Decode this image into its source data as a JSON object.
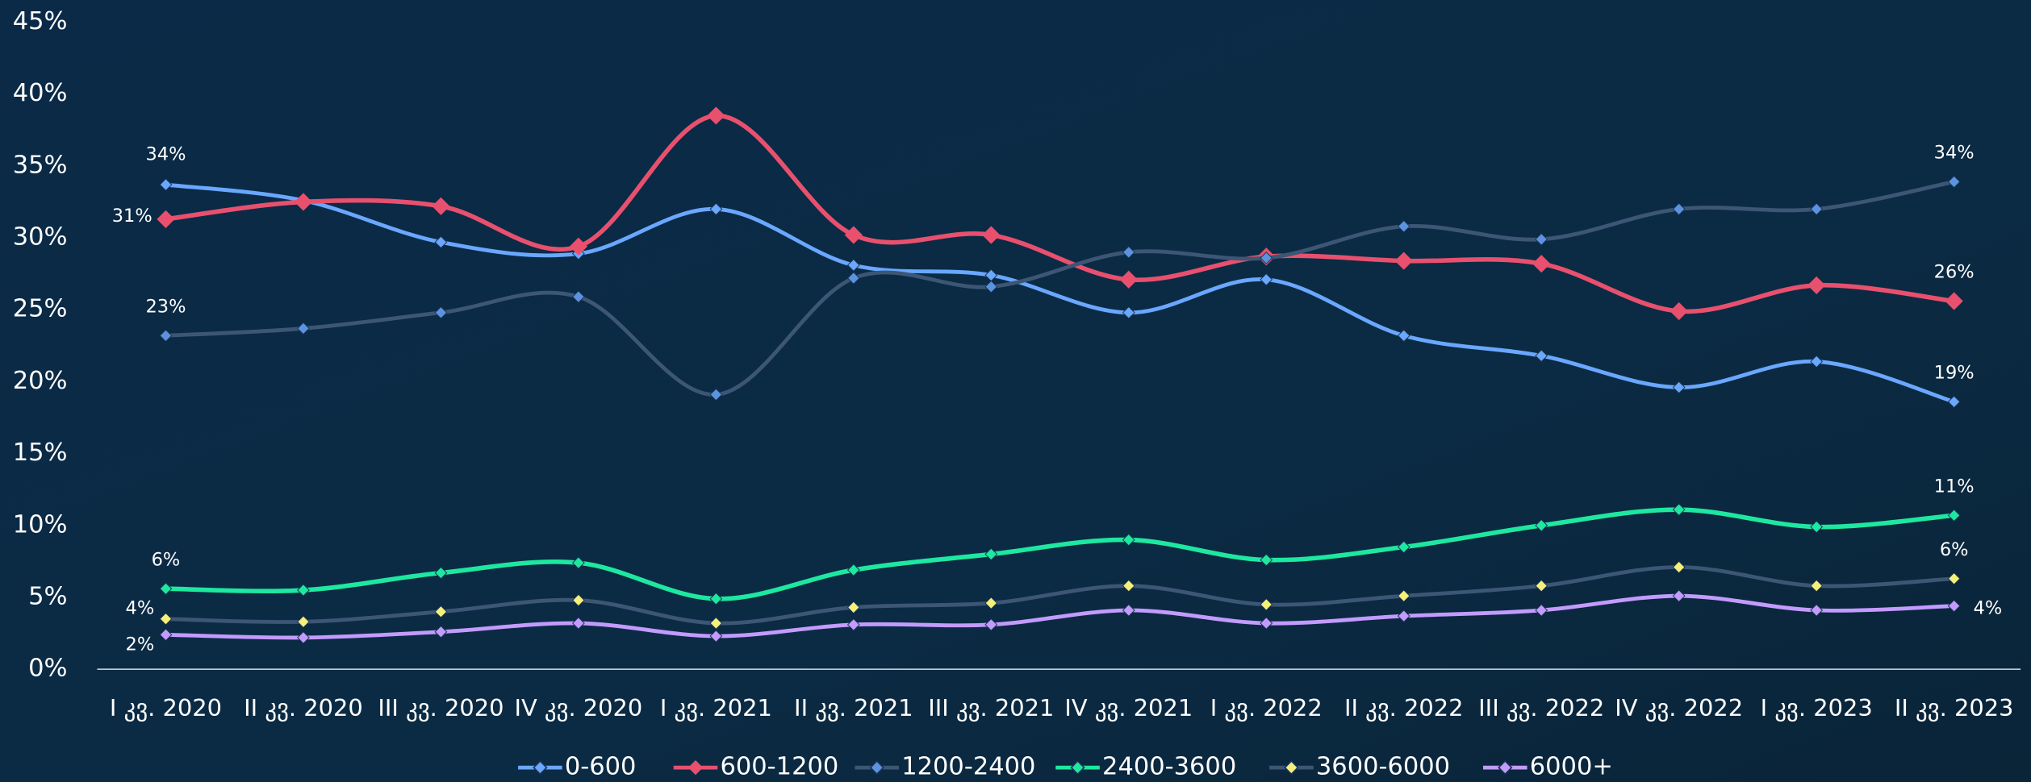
{
  "chart_data": {
    "type": "line",
    "categories": [
      "I კვ. 2020",
      "II კვ. 2020",
      "III კვ. 2020",
      "IV კვ. 2020",
      "I კვ. 2021",
      "II კვ. 2021",
      "III კვ. 2021",
      "IV კვ. 2021",
      "I კვ. 2022",
      "II კვ. 2022",
      "III კვ. 2022",
      "IV კვ. 2022",
      "I კვ. 2023",
      "II კვ. 2023"
    ],
    "ylim": [
      0,
      45
    ],
    "yticks": [
      {
        "value": 0,
        "label": "0%"
      },
      {
        "value": 5,
        "label": "5%"
      },
      {
        "value": 10,
        "label": "10%"
      },
      {
        "value": 15,
        "label": "15%"
      },
      {
        "value": 20,
        "label": "20%"
      },
      {
        "value": 25,
        "label": "25%"
      },
      {
        "value": 30,
        "label": "30%"
      },
      {
        "value": 35,
        "label": "35%"
      },
      {
        "value": 40,
        "label": "40%"
      },
      {
        "value": 45,
        "label": "45%"
      }
    ],
    "legend": "bottom",
    "series": [
      {
        "name": "0-600",
        "color": "#6aa7ff",
        "marker_color": "#6aa7ff",
        "values": [
          33.7,
          32.6,
          29.7,
          28.9,
          32.0,
          28.1,
          27.4,
          24.8,
          27.1,
          23.2,
          21.8,
          19.6,
          21.4,
          18.6
        ],
        "value_labels": [
          "34%",
          null,
          null,
          null,
          null,
          null,
          null,
          null,
          null,
          null,
          null,
          null,
          null,
          "19%"
        ]
      },
      {
        "name": "600-1200",
        "color": "#e8506e",
        "marker_color": "#e8506e",
        "values": [
          31.3,
          32.5,
          32.2,
          29.4,
          38.5,
          30.2,
          30.2,
          27.1,
          28.7,
          28.4,
          28.2,
          24.9,
          26.7,
          25.6
        ],
        "value_labels": [
          "31%",
          null,
          null,
          null,
          null,
          null,
          null,
          null,
          null,
          null,
          null,
          null,
          null,
          "26%"
        ]
      },
      {
        "name": "1200-2400",
        "color": "#3d5675",
        "marker_color": "#5b93e0",
        "values": [
          23.2,
          23.7,
          24.8,
          25.9,
          19.1,
          27.2,
          26.6,
          29.0,
          28.6,
          30.8,
          29.9,
          32.0,
          32.0,
          33.9
        ],
        "value_labels": [
          "23%",
          null,
          null,
          null,
          null,
          null,
          null,
          null,
          null,
          null,
          null,
          null,
          null,
          "34%"
        ]
      },
      {
        "name": "2400-3600",
        "color": "#1ee8a0",
        "marker_color": "#1ee8a0",
        "values": [
          5.6,
          5.5,
          6.7,
          7.4,
          4.9,
          6.9,
          8.0,
          9.0,
          7.6,
          8.5,
          10.0,
          11.1,
          9.9,
          10.7
        ],
        "value_labels": [
          "6%",
          null,
          null,
          null,
          null,
          null,
          null,
          null,
          null,
          null,
          null,
          null,
          null,
          "11%"
        ]
      },
      {
        "name": "3600-6000",
        "color": "#3d5675",
        "marker_color": "#f5f07a",
        "values": [
          3.5,
          3.3,
          4.0,
          4.8,
          3.2,
          4.3,
          4.6,
          5.8,
          4.5,
          5.1,
          5.8,
          7.1,
          5.8,
          6.3
        ],
        "value_labels": [
          "4%",
          null,
          null,
          null,
          null,
          null,
          null,
          null,
          null,
          null,
          null,
          null,
          null,
          "6%"
        ]
      },
      {
        "name": "6000+",
        "color": "#c39bff",
        "marker_color": "#c39bff",
        "values": [
          2.4,
          2.2,
          2.6,
          3.2,
          2.3,
          3.1,
          3.1,
          4.1,
          3.2,
          3.7,
          4.1,
          5.1,
          4.1,
          4.4
        ],
        "value_labels": [
          "2%",
          null,
          null,
          null,
          null,
          null,
          null,
          null,
          null,
          null,
          null,
          null,
          null,
          "4%"
        ]
      }
    ]
  }
}
